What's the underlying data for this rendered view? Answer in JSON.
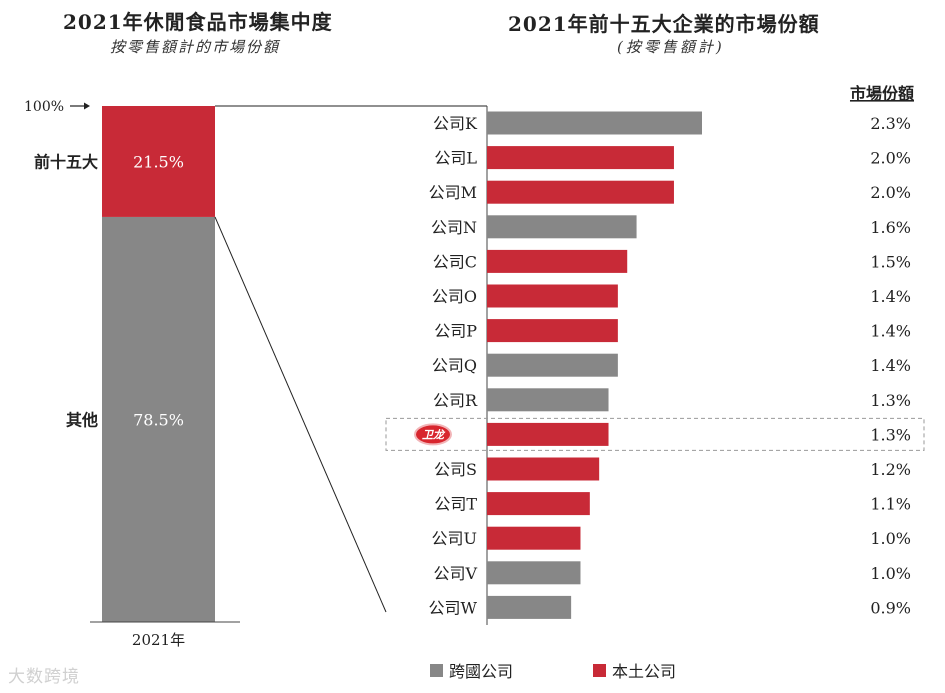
{
  "left_title": "2021年休閒食品市場集中度",
  "left_subtitle": "按零售額計的市場份額",
  "right_title": "2021年前十五大企業的市場份額",
  "right_subtitle": "(按零售額計)",
  "watermark": "大数跨境",
  "colors": {
    "gray": "#878787",
    "red": "#c82a37",
    "logo_red": "#d8262e"
  },
  "chart_data": [
    {
      "type": "bar",
      "stacked": true,
      "title": "2021年休閒食品市場集中度",
      "subtitle": "按零售額計的市場份額",
      "categories": [
        "2021年"
      ],
      "top_label": "100%",
      "series": [
        {
          "name": "其他",
          "values": [
            78.5
          ],
          "label": "78.5%",
          "color": "gray"
        },
        {
          "name": "前十五大",
          "values": [
            21.5
          ],
          "label": "21.5%",
          "color": "red"
        }
      ],
      "ylim": [
        0,
        100
      ]
    },
    {
      "type": "bar",
      "orientation": "horizontal",
      "title": "2021年前十五大企業的市場份額",
      "subtitle": "(按零售額計)",
      "value_header": "市場份額",
      "categories": [
        "公司K",
        "公司L",
        "公司M",
        "公司N",
        "公司C",
        "公司O",
        "公司P",
        "公司Q",
        "公司R",
        "卫龙",
        "公司S",
        "公司T",
        "公司U",
        "公司V",
        "公司W"
      ],
      "values": [
        2.3,
        2.0,
        2.0,
        1.6,
        1.5,
        1.4,
        1.4,
        1.4,
        1.3,
        1.3,
        1.2,
        1.1,
        1.0,
        1.0,
        0.9
      ],
      "value_labels": [
        "2.3%",
        "2.0%",
        "2.0%",
        "1.6%",
        "1.5%",
        "1.4%",
        "1.4%",
        "1.4%",
        "1.3%",
        "1.3%",
        "1.2%",
        "1.1%",
        "1.0%",
        "1.0%",
        "0.9%"
      ],
      "company_type": [
        "跨國公司",
        "本土公司",
        "本土公司",
        "跨國公司",
        "本土公司",
        "本土公司",
        "本土公司",
        "跨國公司",
        "跨國公司",
        "本土公司",
        "本土公司",
        "本土公司",
        "本土公司",
        "跨國公司",
        "跨國公司"
      ],
      "highlight": "卫龙",
      "legend": [
        {
          "label": "跨國公司",
          "color": "gray"
        },
        {
          "label": "本土公司",
          "color": "red"
        }
      ],
      "xlim": [
        0,
        2.3
      ]
    }
  ]
}
